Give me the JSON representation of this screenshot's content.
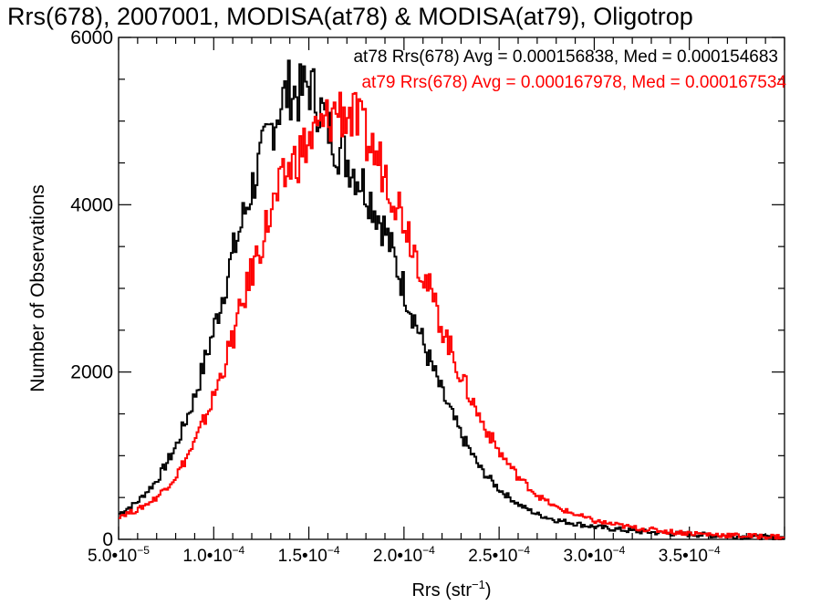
{
  "chart_data": {
    "type": "line",
    "title": "Rrs(678), 2007001, MODISA(at78) & MODISA(at79), Oligotrop",
    "xlabel_main": "Rrs (str",
    "xlabel_sup": "−1",
    "xlabel_end": ")",
    "ylabel": "Number of Observations",
    "xlim": [
      5e-05,
      0.0004
    ],
    "ylim": [
      0,
      6000
    ],
    "x_ticks": [
      {
        "value": 5e-05,
        "mant": "5.0•10",
        "exp": "−5"
      },
      {
        "value": 0.0001,
        "mant": "1.0•10",
        "exp": "−4"
      },
      {
        "value": 0.00015,
        "mant": "1.5•10",
        "exp": "−4"
      },
      {
        "value": 0.0002,
        "mant": "2.0•10",
        "exp": "−4"
      },
      {
        "value": 0.00025,
        "mant": "2.5•10",
        "exp": "−4"
      },
      {
        "value": 0.0003,
        "mant": "3.0•10",
        "exp": "−4"
      },
      {
        "value": 0.00035,
        "mant": "3.5•10",
        "exp": "−4"
      }
    ],
    "y_ticks": [
      {
        "value": 0,
        "label": "0"
      },
      {
        "value": 2000,
        "label": "2000"
      },
      {
        "value": 4000,
        "label": "4000"
      },
      {
        "value": 6000,
        "label": "6000"
      }
    ],
    "grid": false,
    "legend_position": "top-right",
    "series": [
      {
        "name": "at78",
        "label": "at78 Rrs(678) Avg = 0.000156838, Med = 0.000154683",
        "color": "#000000",
        "x": [
          5e-05,
          6e-05,
          7e-05,
          8e-05,
          9e-05,
          0.0001,
          0.00011,
          0.00012,
          0.00013,
          0.000135,
          0.00014,
          0.000145,
          0.00015,
          0.000155,
          0.00016,
          0.000165,
          0.00017,
          0.00018,
          0.00019,
          0.0002,
          0.00021,
          0.00022,
          0.00023,
          0.00024,
          0.00025,
          0.00026,
          0.00027,
          0.00028,
          0.0003,
          0.00032,
          0.00034,
          0.00036,
          0.00038,
          0.0004
        ],
        "y": [
          300,
          450,
          700,
          1100,
          1700,
          2500,
          3400,
          4200,
          4900,
          5200,
          5400,
          5300,
          5450,
          5200,
          4950,
          4700,
          4550,
          4200,
          3700,
          3000,
          2350,
          1750,
          1250,
          850,
          600,
          420,
          300,
          230,
          150,
          100,
          70,
          50,
          30,
          20
        ]
      },
      {
        "name": "at79",
        "label": "at79 Rrs(678) Avg = 0.000167978, Med = 0.000167534",
        "color": "#ff0000",
        "x": [
          5e-05,
          6e-05,
          7e-05,
          8e-05,
          9e-05,
          0.0001,
          0.00011,
          0.00012,
          0.00013,
          0.00014,
          0.00015,
          0.00016,
          0.000165,
          0.00017,
          0.000175,
          0.00018,
          0.00019,
          0.0002,
          0.00021,
          0.00022,
          0.00023,
          0.00024,
          0.00025,
          0.00026,
          0.00027,
          0.00028,
          0.0003,
          0.00032,
          0.00034,
          0.00036,
          0.00038,
          0.0004
        ],
        "y": [
          280,
          350,
          500,
          750,
          1150,
          1700,
          2400,
          3200,
          3900,
          4450,
          4750,
          5000,
          5150,
          5100,
          5000,
          4800,
          4400,
          3850,
          3200,
          2550,
          1950,
          1450,
          1050,
          750,
          530,
          380,
          220,
          140,
          90,
          60,
          40,
          30
        ]
      }
    ]
  }
}
